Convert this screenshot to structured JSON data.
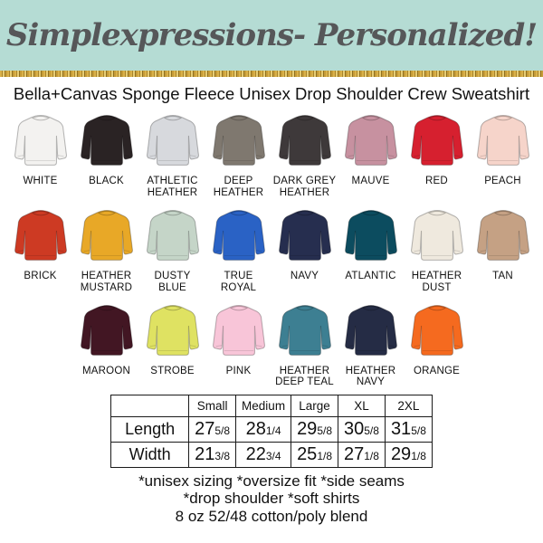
{
  "header": {
    "brand_title": "Simplexpressions- Personalized!",
    "bg_color": "#b5dcd4",
    "text_color": "#565759",
    "glitter_colors": [
      "#d9b14a",
      "#a8842b",
      "#e8cd74",
      "#8f7020",
      "#c69c38"
    ]
  },
  "product": {
    "title": "Bella+Canvas Sponge Fleece Unisex Drop Shoulder Crew Sweatshirt"
  },
  "colors": {
    "rows": [
      [
        {
          "name": "WHITE",
          "hex": "#f3f2f0"
        },
        {
          "name": "BLACK",
          "hex": "#2a2324"
        },
        {
          "name": "ATHLETIC HEATHER",
          "hex": "#d7d9dd"
        },
        {
          "name": "DEEP HEATHER",
          "hex": "#7f786f"
        },
        {
          "name": "DARK GREY HEATHER",
          "hex": "#3e393a"
        },
        {
          "name": "MAUVE",
          "hex": "#c791a0"
        },
        {
          "name": "RED",
          "hex": "#d6202f"
        },
        {
          "name": "PEACH",
          "hex": "#f6d4ca"
        }
      ],
      [
        {
          "name": "BRICK",
          "hex": "#cd3a23"
        },
        {
          "name": "HEATHER MUSTARD",
          "hex": "#e8a827"
        },
        {
          "name": "DUSTY BLUE",
          "hex": "#c5d5c8"
        },
        {
          "name": "TRUE ROYAL",
          "hex": "#2a62c5"
        },
        {
          "name": "NAVY",
          "hex": "#262e4f"
        },
        {
          "name": "ATLANTIC",
          "hex": "#0c4c5f"
        },
        {
          "name": "HEATHER DUST",
          "hex": "#efe9de"
        },
        {
          "name": "TAN",
          "hex": "#c5a184"
        }
      ],
      [
        {
          "name": "MAROON",
          "hex": "#421623"
        },
        {
          "name": "STROBE",
          "hex": "#dfe262"
        },
        {
          "name": "PINK",
          "hex": "#f8c5d8"
        },
        {
          "name": "HEATHER DEEP TEAL",
          "hex": "#3d7f92"
        },
        {
          "name": "HEATHER NAVY",
          "hex": "#252c45"
        },
        {
          "name": "ORANGE",
          "hex": "#f56a1f"
        }
      ]
    ]
  },
  "size_chart": {
    "columns": [
      "Small",
      "Medium",
      "Large",
      "XL",
      "2XL"
    ],
    "rows": [
      {
        "label": "Length",
        "values": [
          [
            "27",
            "5/8"
          ],
          [
            "28",
            "1/4"
          ],
          [
            "29",
            "5/8"
          ],
          [
            "30",
            "5/8"
          ],
          [
            "31",
            "5/8"
          ]
        ]
      },
      {
        "label": "Width",
        "values": [
          [
            "21",
            "3/8"
          ],
          [
            "22",
            "3/4"
          ],
          [
            "25",
            "1/8"
          ],
          [
            "27",
            "1/8"
          ],
          [
            "29",
            "1/8"
          ]
        ]
      }
    ]
  },
  "footer": {
    "lines": [
      "*unisex sizing *oversize fit *side seams",
      "*drop shoulder *soft shirts",
      "8 oz 52/48 cotton/poly blend"
    ]
  }
}
